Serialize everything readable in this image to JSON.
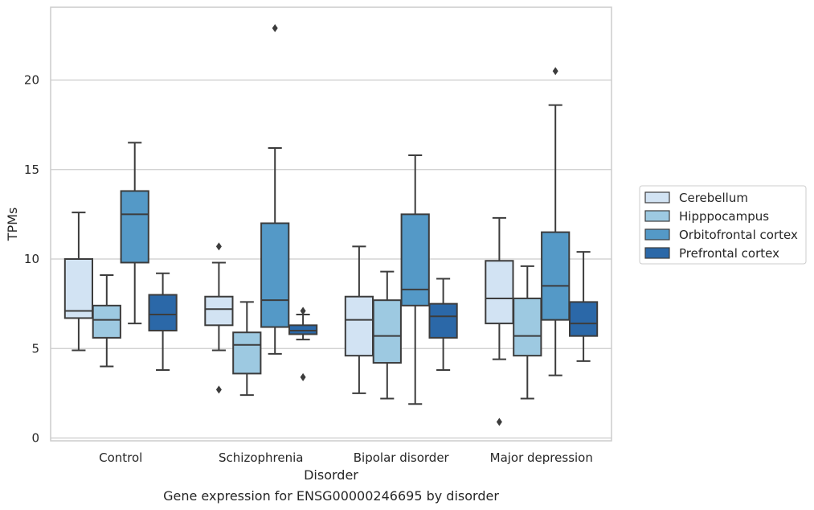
{
  "chart_data": {
    "type": "box",
    "title": "Gene expression for ENSG00000246695 by disorder",
    "xlabel": "Disorder",
    "ylabel": "TPMs",
    "ylim": [
      -0.2,
      24.1
    ],
    "yticks": [
      0,
      5,
      10,
      15,
      20
    ],
    "grid": "horizontal",
    "legend_position": "right",
    "categories": [
      "Control",
      "Schizophrenia",
      "Bipolar disorder",
      "Major depression"
    ],
    "series": [
      {
        "name": "Cerebellum",
        "color": "#d2e3f3",
        "boxes": [
          {
            "whislo": 4.9,
            "q1": 6.7,
            "med": 7.1,
            "q3": 10.0,
            "whishi": 12.6,
            "fliers": []
          },
          {
            "whislo": 4.9,
            "q1": 6.3,
            "med": 7.2,
            "q3": 7.9,
            "whishi": 9.8,
            "fliers": [
              10.7,
              2.7
            ]
          },
          {
            "whislo": 2.5,
            "q1": 4.6,
            "med": 6.6,
            "q3": 7.9,
            "whishi": 10.7,
            "fliers": []
          },
          {
            "whislo": 4.4,
            "q1": 6.4,
            "med": 7.8,
            "q3": 9.9,
            "whishi": 12.3,
            "fliers": [
              0.9
            ]
          }
        ]
      },
      {
        "name": "Hipppocampus",
        "color": "#9dc9e1",
        "boxes": [
          {
            "whislo": 4.0,
            "q1": 5.6,
            "med": 6.6,
            "q3": 7.4,
            "whishi": 9.1,
            "fliers": []
          },
          {
            "whislo": 2.4,
            "q1": 3.6,
            "med": 5.2,
            "q3": 5.9,
            "whishi": 7.6,
            "fliers": []
          },
          {
            "whislo": 2.2,
            "q1": 4.2,
            "med": 5.7,
            "q3": 7.7,
            "whishi": 9.3,
            "fliers": []
          },
          {
            "whislo": 2.2,
            "q1": 4.6,
            "med": 5.7,
            "q3": 7.8,
            "whishi": 9.6,
            "fliers": []
          }
        ]
      },
      {
        "name": "Orbitofrontal cortex",
        "color": "#5499c7",
        "boxes": [
          {
            "whislo": 6.4,
            "q1": 9.8,
            "med": 12.5,
            "q3": 13.8,
            "whishi": 16.5,
            "fliers": []
          },
          {
            "whislo": 4.7,
            "q1": 6.2,
            "med": 7.7,
            "q3": 12.0,
            "whishi": 16.2,
            "fliers": [
              22.9
            ]
          },
          {
            "whislo": 1.9,
            "q1": 7.4,
            "med": 8.3,
            "q3": 12.5,
            "whishi": 15.8,
            "fliers": []
          },
          {
            "whislo": 3.5,
            "q1": 6.6,
            "med": 8.5,
            "q3": 11.5,
            "whishi": 18.6,
            "fliers": [
              20.5
            ]
          }
        ]
      },
      {
        "name": "Prefrontal cortex",
        "color": "#2b68a8",
        "boxes": [
          {
            "whislo": 3.8,
            "q1": 6.0,
            "med": 6.9,
            "q3": 8.0,
            "whishi": 9.2,
            "fliers": []
          },
          {
            "whislo": 5.5,
            "q1": 5.8,
            "med": 6.0,
            "q3": 6.3,
            "whishi": 6.9,
            "fliers": [
              7.1,
              3.4
            ]
          },
          {
            "whislo": 3.8,
            "q1": 5.6,
            "med": 6.8,
            "q3": 7.5,
            "whishi": 8.9,
            "fliers": []
          },
          {
            "whislo": 4.3,
            "q1": 5.7,
            "med": 6.4,
            "q3": 7.6,
            "whishi": 10.4,
            "fliers": []
          }
        ]
      }
    ]
  }
}
